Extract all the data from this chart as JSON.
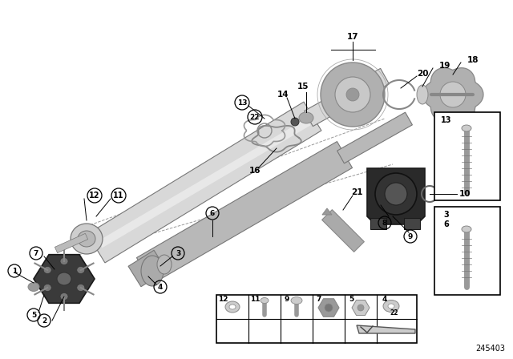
{
  "background_color": "#ffffff",
  "diagram_number": "245403",
  "fig_width": 6.4,
  "fig_height": 4.48,
  "dpi": 100,
  "shaft_light": "#d8d8d8",
  "shaft_mid": "#b8b8b8",
  "shaft_dark": "#888888",
  "shaft_edge": "#777777",
  "flange_dark": "#3a3a3a",
  "flange_mid": "#555555",
  "bearing_dark": "#2a2a2a",
  "bearing_mid": "#444444",
  "cv_gray": "#c0c0c0",
  "line_color": "#000000",
  "text_color": "#000000",
  "white": "#ffffff",
  "light_gray": "#cccccc",
  "mid_gray": "#999999"
}
